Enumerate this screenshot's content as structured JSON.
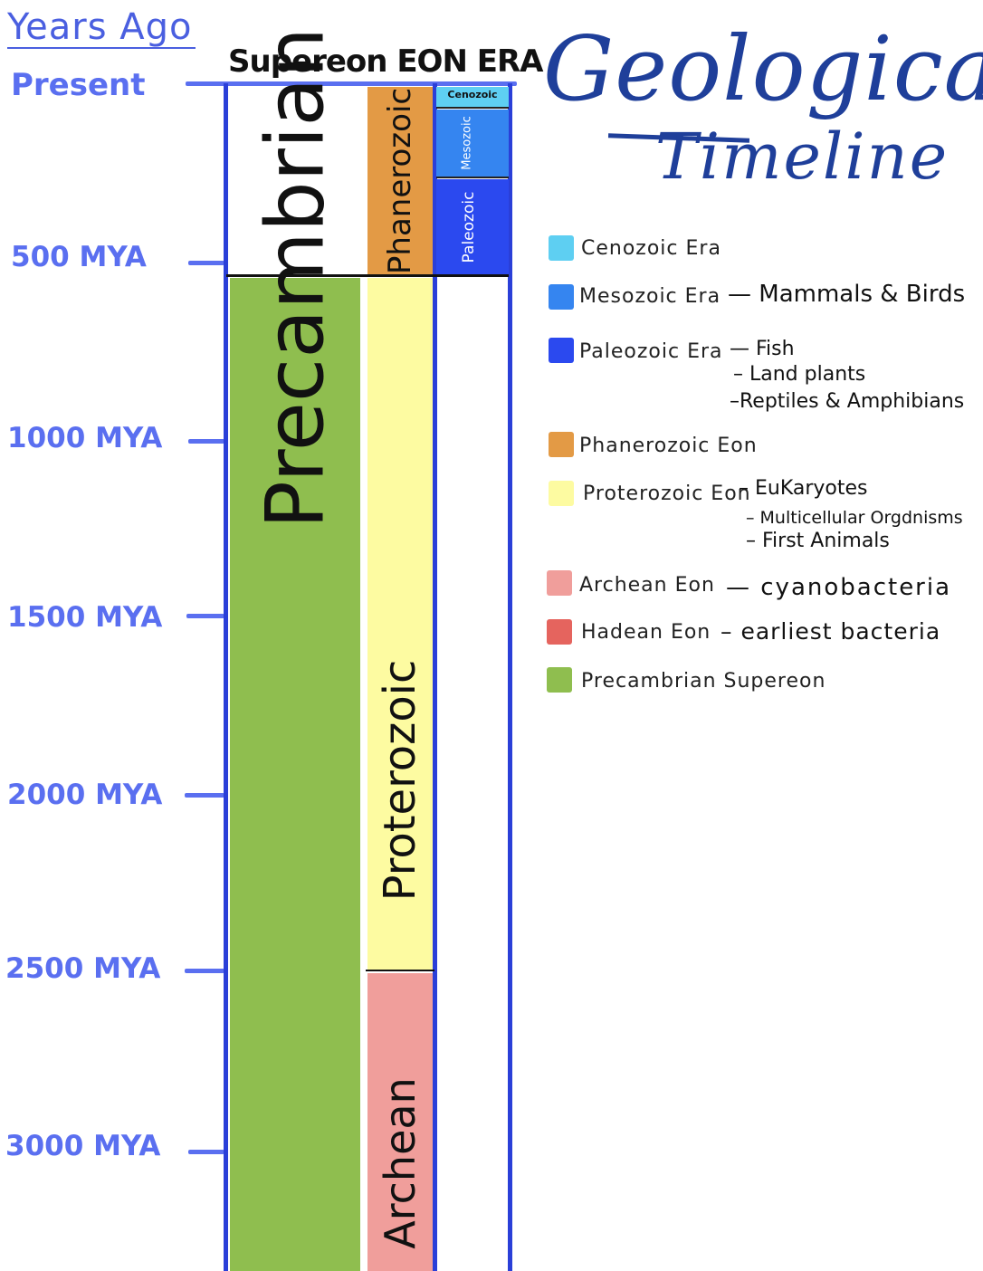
{
  "axis": {
    "header": "Years Ago",
    "present": "Present",
    "ticks": [
      "500 MYA",
      "1000 MYA",
      "1500 MYA",
      "2000 MYA",
      "2500 MYA",
      "3000 MYA"
    ]
  },
  "columns_header": "Supereon EON ERA",
  "title": {
    "line1": "Geological",
    "line2": "Timeline"
  },
  "supereon": {
    "label": "Precambrian",
    "color": "#8fbe4f"
  },
  "eons": [
    {
      "label": "Phanerozoic",
      "color": "#e39a45"
    },
    {
      "label": "Proterozoic",
      "color": "#fdfba1"
    },
    {
      "label": "Archean",
      "color": "#f09e9b"
    }
  ],
  "eras": [
    {
      "label": "Cenozoic",
      "color": "#5ecff2"
    },
    {
      "label": "Mesozoic",
      "color": "#3585f0"
    },
    {
      "label": "Paleozoic",
      "color": "#2b49ef"
    }
  ],
  "legend": [
    {
      "label": "Cenozoic Era",
      "color": "#5ecff2",
      "notes": []
    },
    {
      "label": "Mesozoic Era",
      "color": "#3585f0",
      "notes": [
        "— Mammals & Birds"
      ]
    },
    {
      "label": "Paleozoic Era",
      "color": "#2b49ef",
      "notes": [
        "— Fish",
        "– Land plants",
        "–Reptiles & Amphibians"
      ]
    },
    {
      "label": "Phanerozoic Eon",
      "color": "#e39a45",
      "notes": []
    },
    {
      "label": "Proterozoic Eon",
      "color": "#fdfba1",
      "notes": [
        "– EuKaryotes",
        "– Multicellular Orgdnisms",
        "– First Animals"
      ]
    },
    {
      "label": "Archean Eon",
      "color": "#f09e9b",
      "notes": [
        "— cyanobacteria"
      ]
    },
    {
      "label": "Hadean Eon",
      "color": "#e5645e",
      "notes": [
        "– earliest bacteria"
      ]
    },
    {
      "label": "Precambrian Supereon",
      "color": "#8fbe4f",
      "notes": []
    }
  ]
}
